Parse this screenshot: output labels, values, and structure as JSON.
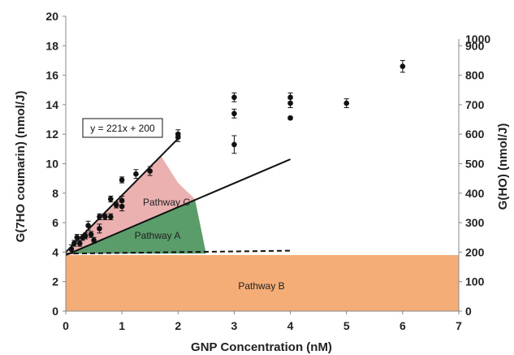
{
  "chart_data": {
    "type": "scatter",
    "xlabel": "GNP Concentration (nM)",
    "ylabel_left": "G(7HO coumarin)  (nmol/J)",
    "ylabel_right": "G(HO)  (nmol/J)",
    "xlim": [
      0,
      7
    ],
    "ylim_left": [
      0,
      20
    ],
    "ylim_right": [
      0,
      1000
    ],
    "x_ticks": [
      "0",
      "1",
      "2",
      "3",
      "4",
      "5",
      "6",
      "7"
    ],
    "y_left_ticks": [
      "0",
      "2",
      "4",
      "6",
      "8",
      "10",
      "12",
      "14",
      "16",
      "18",
      "20"
    ],
    "y_right_ticks": [
      "0",
      "100",
      "200",
      "300",
      "400",
      "500",
      "600",
      "700",
      "800",
      "900",
      "1000"
    ],
    "grid": false,
    "series": [
      {
        "x": [
          0.1,
          0.15,
          0.2,
          0.25,
          0.3,
          0.35,
          0.4,
          0.45,
          0.5,
          0.6,
          0.6,
          0.7,
          0.8,
          0.8,
          0.9,
          1.0,
          1.0,
          1.0,
          1.25,
          1.5,
          2.0,
          2.0,
          3.0,
          3.0,
          3.0,
          4.0,
          4.0,
          4.0,
          5.0,
          6.0
        ],
        "y": [
          4.2,
          4.6,
          5.0,
          4.6,
          5.0,
          5.1,
          5.8,
          5.2,
          4.8,
          5.6,
          6.4,
          6.4,
          6.4,
          7.6,
          7.2,
          8.9,
          7.5,
          7.1,
          9.3,
          9.5,
          12.0,
          11.8,
          14.5,
          13.4,
          11.3,
          14.5,
          14.1,
          13.1,
          14.1,
          16.6
        ],
        "err": [
          0.3,
          0.2,
          0.2,
          0.2,
          0.2,
          0.2,
          0.3,
          0.2,
          0.2,
          0.3,
          0.2,
          0.2,
          0.2,
          0.2,
          0.2,
          0.2,
          0.3,
          0.3,
          0.3,
          0.3,
          0.3,
          0.3,
          0.3,
          0.3,
          0.6,
          0.3,
          0.3,
          0.1,
          0.3,
          0.4
        ]
      }
    ],
    "lines": [
      {
        "style": "solid",
        "x": [
          0,
          2
        ],
        "y": [
          4,
          11.7
        ]
      },
      {
        "style": "solid",
        "x": [
          0,
          4
        ],
        "y": [
          3.8,
          10.3
        ]
      },
      {
        "style": "dashed",
        "x": [
          0,
          4
        ],
        "y": [
          3.9,
          4.1
        ]
      }
    ],
    "regions": [
      {
        "label": "Pathway C",
        "color": "#e8a2a2",
        "opacity": 0.85,
        "polygon": [
          [
            0.05,
            4.1
          ],
          [
            1.7,
            10.5
          ],
          [
            2.0,
            8.7
          ],
          [
            2.3,
            7.6
          ],
          [
            0.05,
            3.9
          ]
        ]
      },
      {
        "label": "Pathway A",
        "color": "#3d8b50",
        "opacity": 0.85,
        "polygon": [
          [
            0.05,
            3.9
          ],
          [
            2.3,
            7.6
          ],
          [
            2.5,
            3.9
          ]
        ]
      },
      {
        "label": "Pathway B",
        "color": "#f5ad78",
        "opacity": 1.0,
        "polygon": [
          [
            0,
            0
          ],
          [
            7,
            0
          ],
          [
            7,
            3.8
          ],
          [
            0,
            3.8
          ]
        ]
      }
    ],
    "annotation": {
      "text": "y = 221x + 200"
    }
  }
}
